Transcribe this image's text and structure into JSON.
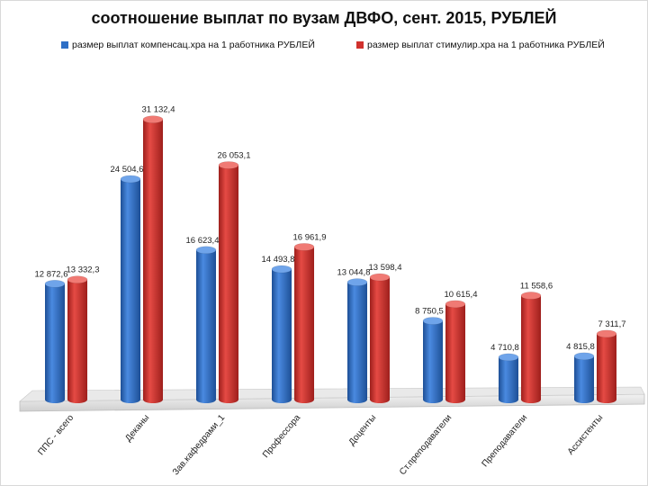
{
  "chart_data": {
    "type": "bar",
    "title": "соотношение выплат по вузам ДВФО, сент. 2015, РУБЛЕЙ",
    "legend_position": "top",
    "categories": [
      "ППС - всего",
      "Деканы",
      "Зав.кафедрами_1",
      "Профессора",
      "Доценты",
      "Ст.преподаватели",
      "Преподаватели",
      "Ассистенты"
    ],
    "series": [
      {
        "name": "размер выплат компенсац.хра на 1 работника РУБЛЕЙ",
        "color": "#2e6fc6",
        "values": [
          12872.6,
          24504.6,
          16623.4,
          14493.8,
          13044.8,
          8750.5,
          4710.8,
          4815.8
        ],
        "labels": [
          "12 872,6",
          "24 504,6",
          "16 623,4",
          "14 493,8",
          "13 044,8",
          "8 750,5",
          "4 710,8",
          "4 815,8"
        ]
      },
      {
        "name": "размер выплат стимулир.хра на 1 работника РУБЛЕЙ",
        "color": "#d0312d",
        "values": [
          13332.3,
          31132.4,
          26053.1,
          16961.9,
          13598.4,
          10615.4,
          11558.6,
          7311.7
        ],
        "labels": [
          "13 332,3",
          "31 132,4",
          "26 053,1",
          "16 961,9",
          "13 598,4",
          "10 615,4",
          "11 558,6",
          "7 311,7"
        ]
      }
    ],
    "ylim": [
      0,
      35000
    ],
    "grid": false,
    "xlabel": "",
    "ylabel": ""
  }
}
